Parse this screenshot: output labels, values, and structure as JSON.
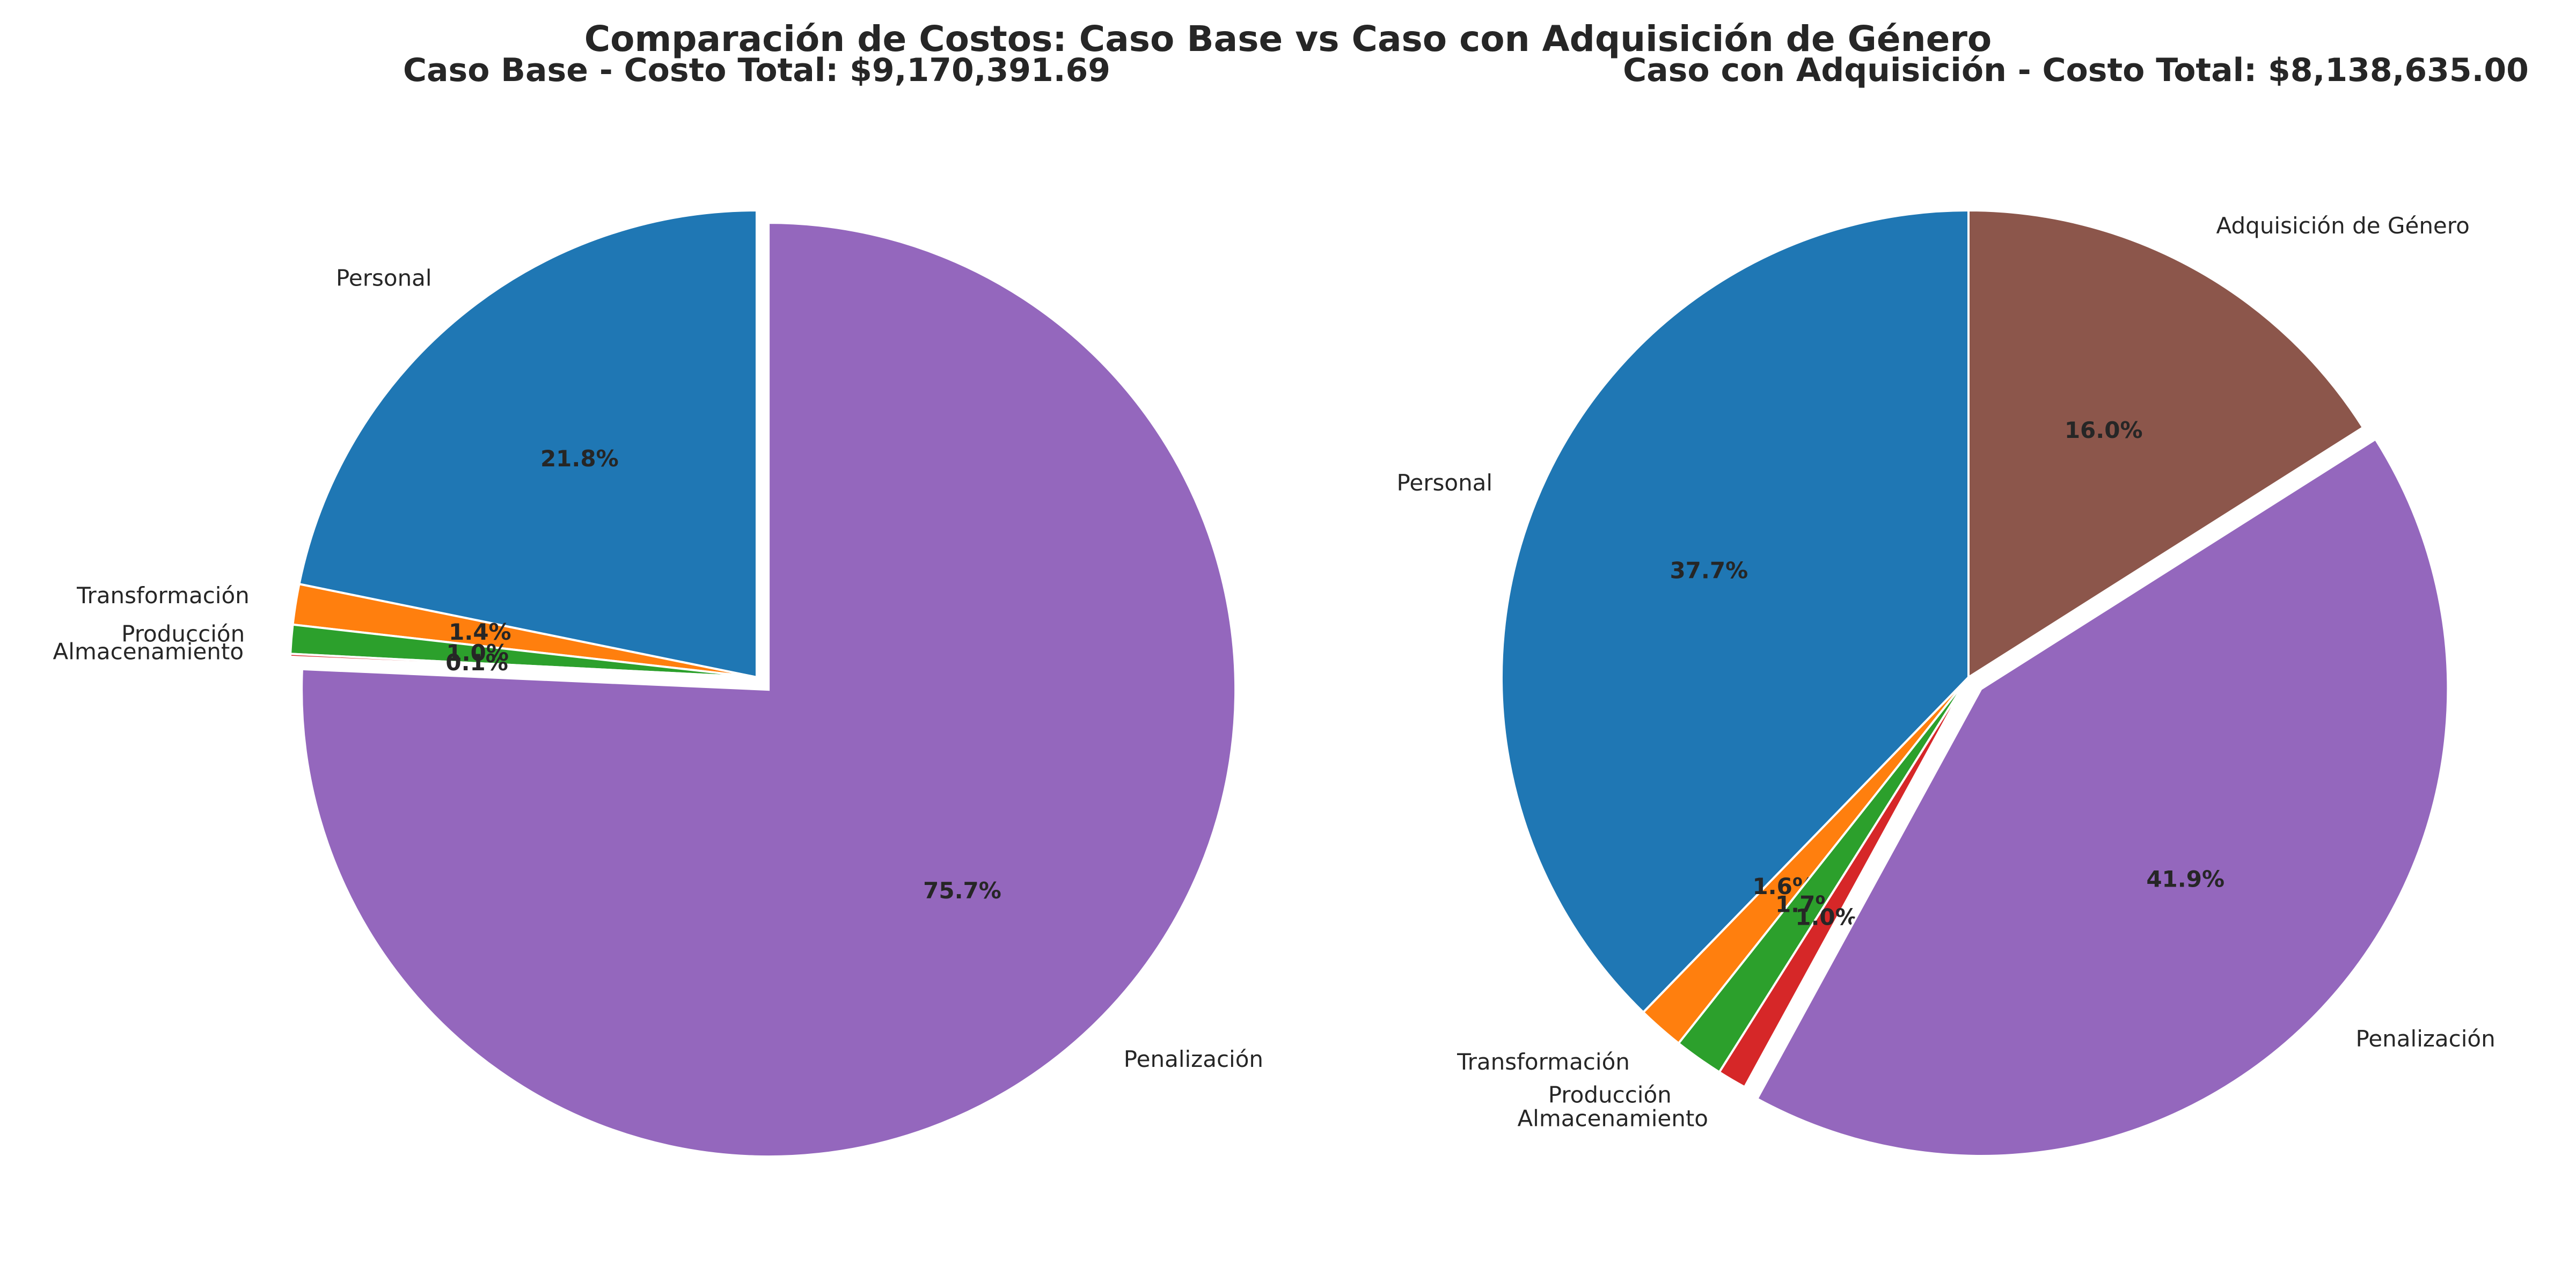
{
  "figure_title": "Comparación de Costos: Caso Base vs Caso con Adquisición de Género",
  "colors": {
    "Personal": "#1f77b4",
    "Transformación": "#ff7f0e",
    "Producción": "#2ca02c",
    "Almacenamiento": "#d62728",
    "Penalización": "#9467bd",
    "Adquisición de Género": "#8c564b"
  },
  "chart_data": [
    {
      "type": "pie",
      "title": "Caso Base - Costo Total: $9,170,391.69",
      "start_angle": 90,
      "direction": "counterclockwise",
      "slices": [
        {
          "label": "Personal",
          "value": 21.8,
          "pct_label": "21.8%",
          "explode": false
        },
        {
          "label": "Transformación",
          "value": 1.4,
          "pct_label": "1.4%",
          "explode": false
        },
        {
          "label": "Producción",
          "value": 1.0,
          "pct_label": "1.0%",
          "explode": false
        },
        {
          "label": "Almacenamiento",
          "value": 0.1,
          "pct_label": "0.1%",
          "explode": false
        },
        {
          "label": "Penalización",
          "value": 75.7,
          "pct_label": "75.7%",
          "explode": true
        }
      ]
    },
    {
      "type": "pie",
      "title": "Caso con Adquisición - Costo Total: $8,138,635.00",
      "start_angle": 90,
      "direction": "counterclockwise",
      "slices": [
        {
          "label": "Personal",
          "value": 37.7,
          "pct_label": "37.7%",
          "explode": false
        },
        {
          "label": "Transformación",
          "value": 1.6,
          "pct_label": "1.6%",
          "explode": false
        },
        {
          "label": "Producción",
          "value": 1.7,
          "pct_label": "1.7%",
          "explode": false
        },
        {
          "label": "Almacenamiento",
          "value": 1.0,
          "pct_label": "1.0%",
          "explode": false
        },
        {
          "label": "Penalización",
          "value": 41.9,
          "pct_label": "41.9%",
          "explode": true
        },
        {
          "label": "Adquisición de Género",
          "value": 16.0,
          "pct_label": "16.0%",
          "explode": false
        }
      ]
    }
  ]
}
